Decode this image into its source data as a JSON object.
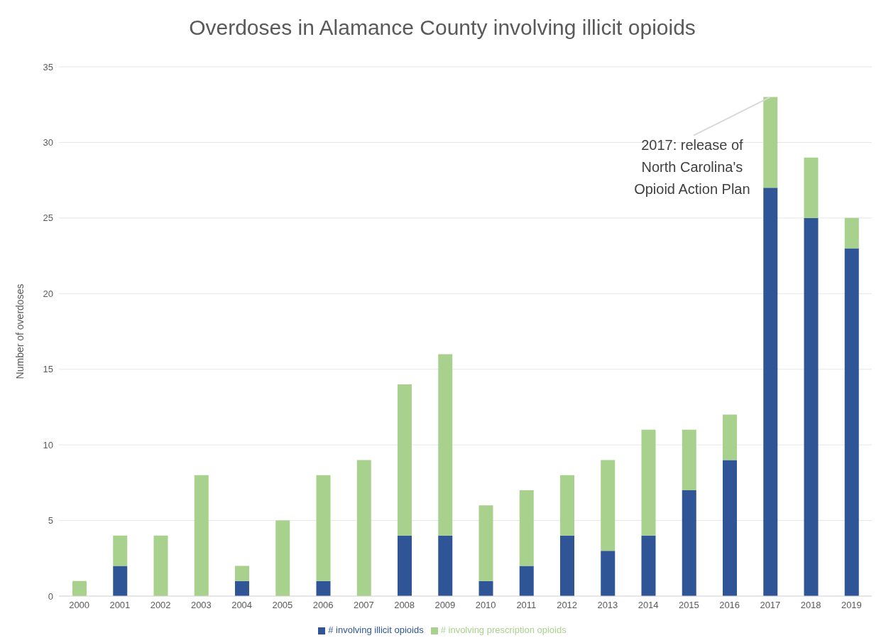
{
  "chart_data": {
    "type": "bar",
    "title": "Overdoses in Alamance County involving illicit opioids",
    "ylabel": "Number of overdoses",
    "categories": [
      "2000",
      "2001",
      "2002",
      "2003",
      "2004",
      "2005",
      "2006",
      "2007",
      "2008",
      "2009",
      "2010",
      "2011",
      "2012",
      "2013",
      "2014",
      "2015",
      "2016",
      "2017",
      "2018",
      "2019"
    ],
    "stacked": true,
    "series": [
      {
        "name": "# involving illicit opioids",
        "color": "#2f5597",
        "values": [
          0,
          2,
          0,
          0,
          1,
          0,
          1,
          0,
          4,
          4,
          1,
          2,
          4,
          3,
          4,
          7,
          9,
          27,
          25,
          23
        ]
      },
      {
        "name": "# involving prescription opioids",
        "color": "#a9d18e",
        "values": [
          1,
          2,
          4,
          8,
          1,
          5,
          7,
          9,
          10,
          12,
          5,
          5,
          4,
          6,
          7,
          4,
          3,
          6,
          4,
          2
        ]
      }
    ],
    "ylim": [
      0,
      35
    ],
    "yticks": [
      0,
      5,
      10,
      15,
      20,
      25,
      30,
      35
    ],
    "grid": "y",
    "legend": "bottom",
    "annotations": [
      {
        "text": "2017: release of\nNorth Carolina's\nOpioid Action Plan",
        "x": "2017",
        "y": 33
      }
    ]
  }
}
